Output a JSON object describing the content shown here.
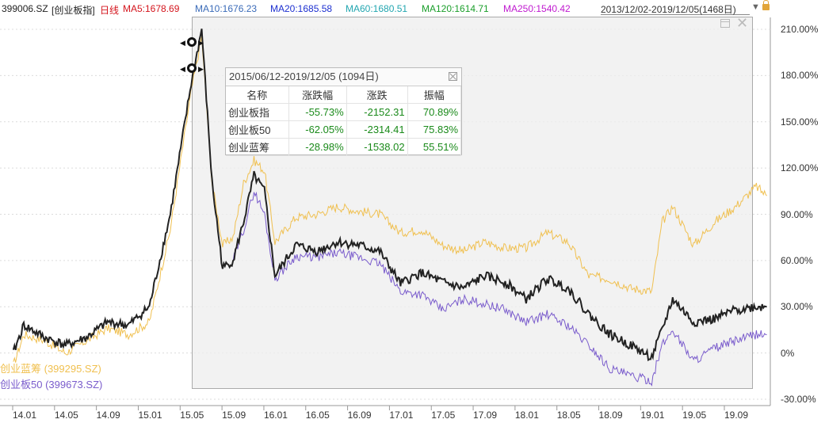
{
  "header": {
    "code": "399006.SZ",
    "name": "[创业板指]",
    "period": "日线",
    "ma": [
      {
        "label": "MA5:1678.69",
        "color": "#d4141c"
      },
      {
        "label": "MA10:1676.23",
        "color": "#3a6bb8"
      },
      {
        "label": "MA20:1685.58",
        "color": "#1c2fd0"
      },
      {
        "label": "MA60:1680.51",
        "color": "#22a6b0"
      },
      {
        "label": "MA120:1614.71",
        "color": "#1a9e2a"
      },
      {
        "label": "MA250:1540.42",
        "color": "#c01ad0"
      }
    ],
    "range": "2013/12/02-2019/12/05(1468日)"
  },
  "popup": {
    "title": "2015/06/12-2019/12/05 (1094日)",
    "columns": [
      "名称",
      "涨跌幅",
      "涨跌",
      "振幅"
    ],
    "rows": [
      {
        "name": "创业板指",
        "pct": "-55.73%",
        "chg": "-2152.31",
        "amp": "70.89%"
      },
      {
        "name": "创业板50",
        "pct": "-62.05%",
        "chg": "-2314.41",
        "amp": "75.83%"
      },
      {
        "name": "创业蓝筹",
        "pct": "-28.98%",
        "chg": "-1538.02",
        "amp": "55.51%"
      }
    ]
  },
  "legend": [
    {
      "label": "创业蓝筹 (399295.SZ)",
      "color": "#f0c050"
    },
    {
      "label": "创业板50 (399673.SZ)",
      "color": "#7a5ccc"
    }
  ],
  "chart_data": {
    "type": "line",
    "x_ticks": [
      "14.01",
      "14.05",
      "14.09",
      "15.01",
      "15.05",
      "15.09",
      "16.01",
      "16.05",
      "16.09",
      "17.01",
      "17.05",
      "17.09",
      "18.01",
      "18.05",
      "18.09",
      "19.01",
      "19.05",
      "19.09"
    ],
    "y_ticks": [
      "210.00%",
      "180.00%",
      "150.00%",
      "120.00%",
      "90.00%",
      "60.00%",
      "30.00%",
      "0%",
      "-30.00%"
    ],
    "ylim": [
      -30,
      210
    ],
    "series": [
      {
        "name": "创业板指",
        "color": "#222222",
        "x": [
          "13.12",
          "14.01",
          "14.03",
          "14.05",
          "14.07",
          "14.09",
          "14.11",
          "15.01",
          "15.03",
          "15.05",
          "15.06",
          "15.07",
          "15.08",
          "15.09",
          "15.10",
          "15.11",
          "15.12",
          "16.01",
          "16.03",
          "16.05",
          "16.07",
          "16.09",
          "16.11",
          "17.01",
          "17.03",
          "17.05",
          "17.07",
          "17.09",
          "17.11",
          "18.01",
          "18.03",
          "18.05",
          "18.07",
          "18.09",
          "18.11",
          "19.01",
          "19.02",
          "19.03",
          "19.05",
          "19.07",
          "19.09",
          "19.11",
          "19.12"
        ],
        "y": [
          0,
          18,
          10,
          5,
          10,
          20,
          18,
          30,
          90,
          175,
          210,
          110,
          55,
          60,
          85,
          115,
          105,
          50,
          70,
          66,
          72,
          70,
          66,
          45,
          52,
          46,
          42,
          50,
          46,
          35,
          48,
          42,
          25,
          12,
          5,
          -3,
          15,
          35,
          20,
          22,
          28,
          30,
          30
        ]
      },
      {
        "name": "创业板50",
        "color": "#7a5ccc",
        "x": [
          "15.09",
          "15.10",
          "15.11",
          "15.12",
          "16.01",
          "16.03",
          "16.05",
          "16.07",
          "16.09",
          "16.11",
          "17.01",
          "17.03",
          "17.05",
          "17.07",
          "17.09",
          "17.11",
          "18.01",
          "18.03",
          "18.05",
          "18.07",
          "18.09",
          "18.11",
          "19.01",
          "19.02",
          "19.03",
          "19.05",
          "19.07",
          "19.09",
          "19.11",
          "19.12"
        ],
        "y": [
          60,
          80,
          105,
          90,
          48,
          63,
          62,
          65,
          62,
          58,
          40,
          38,
          28,
          35,
          32,
          28,
          20,
          25,
          18,
          5,
          -10,
          -15,
          -18,
          5,
          15,
          -5,
          3,
          8,
          12,
          12
        ]
      },
      {
        "name": "创业蓝筹",
        "color": "#f0c050",
        "x": [
          "13.12",
          "14.01",
          "14.03",
          "14.05",
          "14.07",
          "14.09",
          "14.11",
          "15.01",
          "15.03",
          "15.05",
          "15.06",
          "15.07",
          "15.08",
          "15.09",
          "15.10",
          "15.11",
          "15.12",
          "16.01",
          "16.03",
          "16.05",
          "16.07",
          "16.09",
          "16.11",
          "17.01",
          "17.03",
          "17.05",
          "17.07",
          "17.09",
          "17.11",
          "18.01",
          "18.03",
          "18.05",
          "18.07",
          "18.09",
          "18.11",
          "19.01",
          "19.02",
          "19.03",
          "19.05",
          "19.07",
          "19.09",
          "19.11",
          "19.12"
        ],
        "y": [
          -8,
          12,
          8,
          0,
          8,
          16,
          12,
          20,
          80,
          170,
          205,
          110,
          70,
          75,
          110,
          125,
          118,
          72,
          88,
          90,
          95,
          92,
          90,
          78,
          80,
          70,
          66,
          72,
          68,
          68,
          78,
          72,
          50,
          48,
          42,
          40,
          85,
          95,
          70,
          85,
          95,
          108,
          102
        ]
      }
    ]
  }
}
